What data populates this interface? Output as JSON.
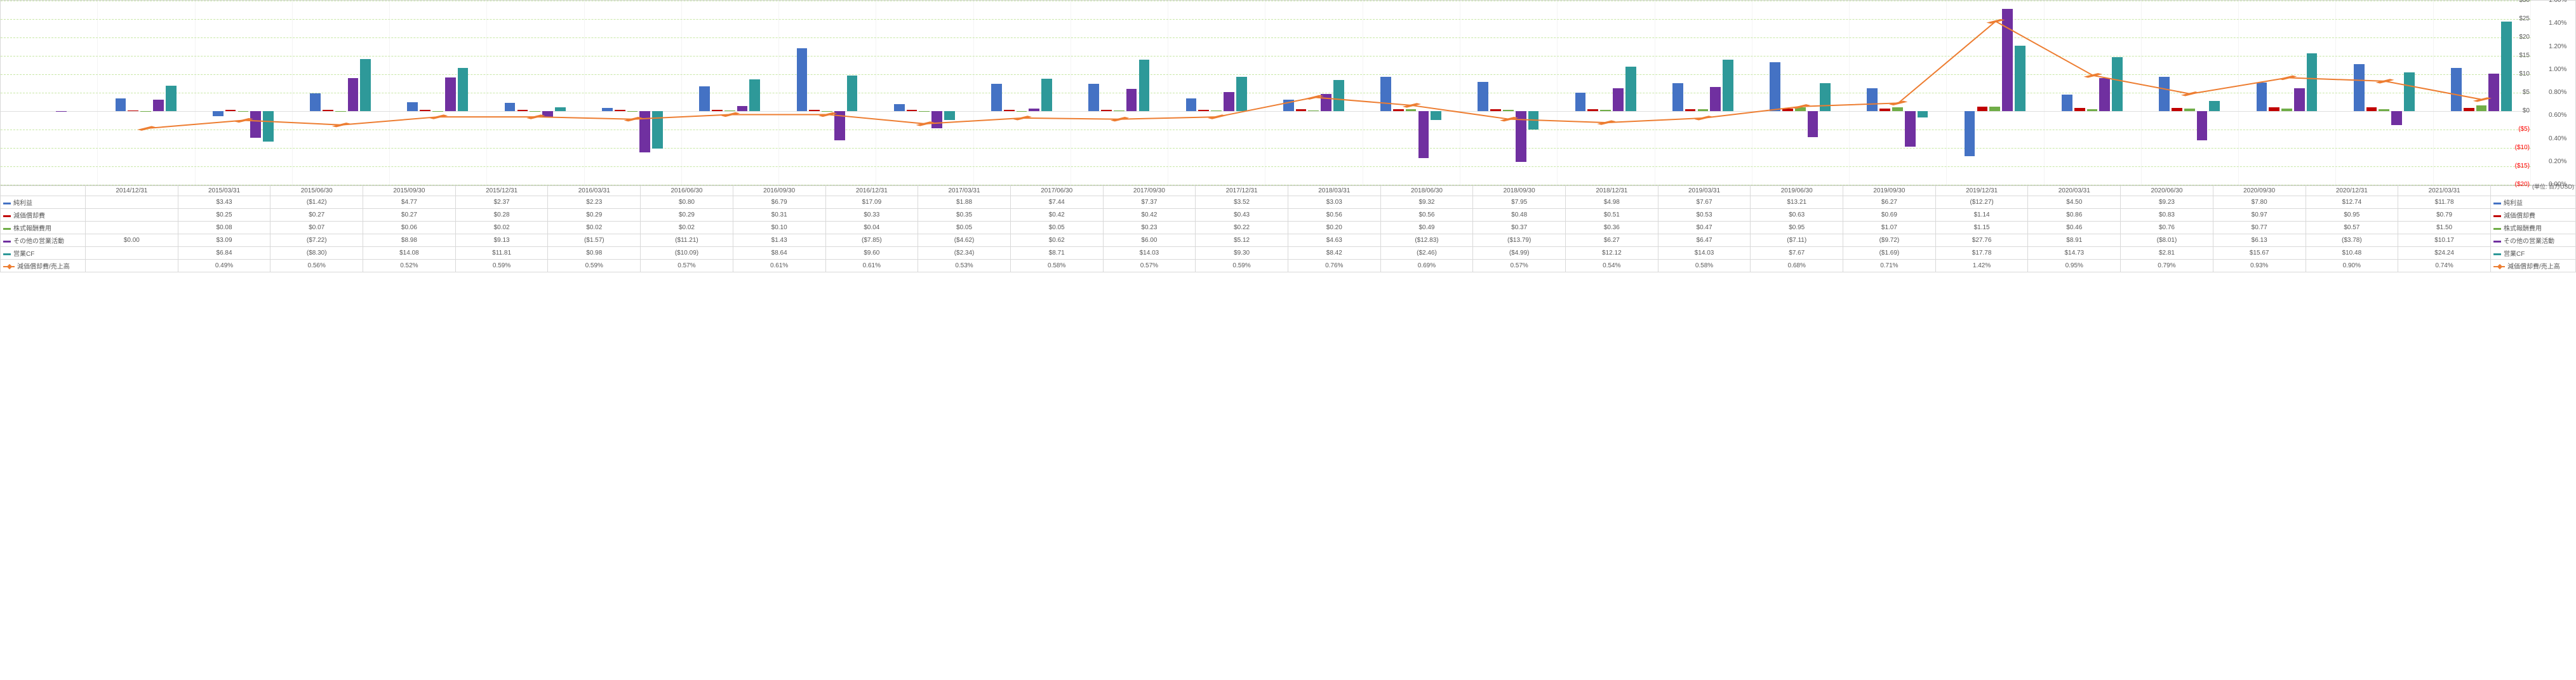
{
  "unit_label": "(単位: 百万USD)",
  "left_axis": {
    "min": -20,
    "max": 30,
    "ticks": [
      -20,
      -15,
      -10,
      -5,
      0,
      5,
      10,
      15,
      20,
      25,
      30
    ],
    "fmt": "$"
  },
  "right_axis": {
    "min": 0,
    "max": 1.6,
    "ticks": [
      0,
      0.2,
      0.4,
      0.6,
      0.8,
      1.0,
      1.2,
      1.4,
      1.6
    ],
    "fmt": "%"
  },
  "colors": {
    "net_income": "#4472c4",
    "depreciation": "#c00000",
    "stock_comp": "#70ad47",
    "other_ops": "#7030a0",
    "op_cf": "#2e9999",
    "ratio": "#ed7d31",
    "neg_tick": "#ff0000"
  },
  "series_meta": [
    {
      "key": "net_income",
      "label": "純利益",
      "type": "bar",
      "col": "#4472c4"
    },
    {
      "key": "depreciation",
      "label": "減価償却費",
      "type": "bar",
      "col": "#c00000"
    },
    {
      "key": "stock_comp",
      "label": "株式報酬費用",
      "type": "bar",
      "col": "#70ad47"
    },
    {
      "key": "other_ops",
      "label": "その他の営業活動",
      "type": "bar",
      "col": "#7030a0"
    },
    {
      "key": "op_cf",
      "label": "営業CF",
      "type": "bar",
      "col": "#2e9999"
    },
    {
      "key": "ratio",
      "label": "減価償却費/売上高",
      "type": "line",
      "col": "#ed7d31"
    }
  ],
  "periods": [
    "2014/12/31",
    "2015/03/31",
    "2015/06/30",
    "2015/09/30",
    "2015/12/31",
    "2016/03/31",
    "2016/06/30",
    "2016/09/30",
    "2016/12/31",
    "2017/03/31",
    "2017/06/30",
    "2017/09/30",
    "2017/12/31",
    "2018/03/31",
    "2018/06/30",
    "2018/09/30",
    "2018/12/31",
    "2019/03/31",
    "2019/06/30",
    "2019/09/30",
    "2019/12/31",
    "2020/03/31",
    "2020/06/30",
    "2020/09/30",
    "2020/12/31",
    "2021/03/31"
  ],
  "data": {
    "net_income": [
      null,
      3.43,
      -1.42,
      4.77,
      2.37,
      2.23,
      0.8,
      6.79,
      17.09,
      1.88,
      7.44,
      7.37,
      3.52,
      3.03,
      9.32,
      7.95,
      4.98,
      7.67,
      13.21,
      6.27,
      -12.27,
      4.5,
      9.23,
      7.8,
      12.74,
      11.78
    ],
    "depreciation": [
      null,
      0.25,
      0.27,
      0.27,
      0.28,
      0.29,
      0.29,
      0.31,
      0.33,
      0.35,
      0.42,
      0.42,
      0.43,
      0.56,
      0.56,
      0.48,
      0.51,
      0.53,
      0.63,
      0.69,
      1.14,
      0.86,
      0.83,
      0.97,
      0.95,
      0.79
    ],
    "stock_comp": [
      null,
      0.08,
      0.07,
      0.06,
      0.02,
      0.02,
      0.02,
      0.1,
      0.04,
      0.05,
      0.05,
      0.23,
      0.22,
      0.2,
      0.49,
      0.37,
      0.36,
      0.47,
      0.95,
      1.07,
      1.15,
      0.46,
      0.76,
      0.77,
      0.57,
      1.5
    ],
    "other_ops": [
      0.0,
      3.09,
      -7.22,
      8.98,
      9.13,
      -1.57,
      -11.21,
      1.43,
      -7.85,
      -4.62,
      0.62,
      6.0,
      5.12,
      4.63,
      -12.83,
      -13.79,
      6.27,
      6.47,
      -7.11,
      -9.72,
      27.76,
      8.91,
      -8.01,
      6.13,
      -3.78,
      10.17
    ],
    "op_cf": [
      null,
      6.84,
      -8.3,
      14.08,
      11.81,
      0.98,
      -10.09,
      8.64,
      9.6,
      -2.34,
      8.71,
      14.03,
      9.3,
      8.42,
      -2.46,
      -4.99,
      12.12,
      14.03,
      7.67,
      -1.69,
      17.78,
      14.73,
      2.81,
      15.67,
      10.48,
      24.24
    ],
    "ratio": [
      null,
      0.49,
      0.56,
      0.52,
      0.59,
      0.59,
      0.57,
      0.61,
      0.61,
      0.53,
      0.58,
      0.57,
      0.59,
      0.76,
      0.69,
      0.57,
      0.54,
      0.58,
      0.68,
      0.71,
      1.42,
      0.95,
      0.79,
      0.93,
      0.9,
      0.74
    ]
  },
  "display": {
    "net_income": [
      "",
      "$3.43",
      "($1.42)",
      "$4.77",
      "$2.37",
      "$2.23",
      "$0.80",
      "$6.79",
      "$17.09",
      "$1.88",
      "$7.44",
      "$7.37",
      "$3.52",
      "$3.03",
      "$9.32",
      "$7.95",
      "$4.98",
      "$7.67",
      "$13.21",
      "$6.27",
      "($12.27)",
      "$4.50",
      "$9.23",
      "$7.80",
      "$12.74",
      "$11.78"
    ],
    "depreciation": [
      "",
      "$0.25",
      "$0.27",
      "$0.27",
      "$0.28",
      "$0.29",
      "$0.29",
      "$0.31",
      "$0.33",
      "$0.35",
      "$0.42",
      "$0.42",
      "$0.43",
      "$0.56",
      "$0.56",
      "$0.48",
      "$0.51",
      "$0.53",
      "$0.63",
      "$0.69",
      "$1.14",
      "$0.86",
      "$0.83",
      "$0.97",
      "$0.95",
      "$0.79"
    ],
    "stock_comp": [
      "",
      "$0.08",
      "$0.07",
      "$0.06",
      "$0.02",
      "$0.02",
      "$0.02",
      "$0.10",
      "$0.04",
      "$0.05",
      "$0.05",
      "$0.23",
      "$0.22",
      "$0.20",
      "$0.49",
      "$0.37",
      "$0.36",
      "$0.47",
      "$0.95",
      "$1.07",
      "$1.15",
      "$0.46",
      "$0.76",
      "$0.77",
      "$0.57",
      "$1.50"
    ],
    "other_ops": [
      "$0.00",
      "$3.09",
      "($7.22)",
      "$8.98",
      "$9.13",
      "($1.57)",
      "($11.21)",
      "$1.43",
      "($7.85)",
      "($4.62)",
      "$0.62",
      "$6.00",
      "$5.12",
      "$4.63",
      "($12.83)",
      "($13.79)",
      "$6.27",
      "$6.47",
      "($7.11)",
      "($9.72)",
      "$27.76",
      "$8.91",
      "($8.01)",
      "$6.13",
      "($3.78)",
      "$10.17"
    ],
    "op_cf": [
      "",
      "$6.84",
      "($8.30)",
      "$14.08",
      "$11.81",
      "$0.98",
      "($10.09)",
      "$8.64",
      "$9.60",
      "($2.34)",
      "$8.71",
      "$14.03",
      "$9.30",
      "$8.42",
      "($2.46)",
      "($4.99)",
      "$12.12",
      "$14.03",
      "$7.67",
      "($1.69)",
      "$17.78",
      "$14.73",
      "$2.81",
      "$15.67",
      "$10.48",
      "$24.24"
    ],
    "ratio": [
      "",
      "0.49%",
      "0.56%",
      "0.52%",
      "0.59%",
      "0.59%",
      "0.57%",
      "0.61%",
      "0.61%",
      "0.53%",
      "0.58%",
      "0.57%",
      "0.59%",
      "0.76%",
      "0.69%",
      "0.57%",
      "0.54%",
      "0.58%",
      "0.68%",
      "0.71%",
      "1.42%",
      "0.95%",
      "0.79%",
      "0.93%",
      "0.90%",
      "0.74%"
    ]
  },
  "row_label_col_width": 125,
  "legend_col_width": 125
}
